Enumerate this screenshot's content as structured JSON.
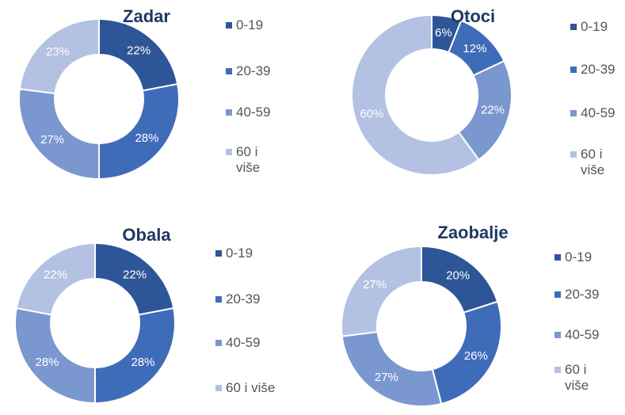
{
  "chart_data": [
    {
      "type": "donut",
      "title": "Zadar",
      "categories": [
        "0-19",
        "20-39",
        "40-59",
        "60 i više"
      ],
      "values": [
        22,
        28,
        27,
        23
      ],
      "value_labels": [
        "22%",
        "28%",
        "27%",
        "23%"
      ],
      "colors": [
        "#2e5597",
        "#3f6cb8",
        "#7b97cf",
        "#b3c2e2"
      ]
    },
    {
      "type": "donut",
      "title": "Otoci",
      "categories": [
        "0-19",
        "20-39",
        "40-59",
        "60 i više"
      ],
      "values": [
        6,
        12,
        22,
        60
      ],
      "value_labels": [
        "6%",
        "12%",
        "22%",
        "60%"
      ],
      "colors": [
        "#2e5597",
        "#3f6cb8",
        "#7b97cf",
        "#b3c2e2"
      ]
    },
    {
      "type": "donut",
      "title": "Obala",
      "categories": [
        "0-19",
        "20-39",
        "40-59",
        "60 i više"
      ],
      "values": [
        22,
        28,
        28,
        22
      ],
      "value_labels": [
        "22%",
        "28%",
        "28%",
        "22%"
      ],
      "colors": [
        "#2e5597",
        "#3f6cb8",
        "#7b97cf",
        "#b3c2e2"
      ]
    },
    {
      "type": "donut",
      "title": "Zaobalje",
      "categories": [
        "0-19",
        "20-39",
        "40-59",
        "60 i više"
      ],
      "values": [
        20,
        26,
        27,
        27
      ],
      "value_labels": [
        "20%",
        "26%",
        "27%",
        "27%"
      ],
      "colors": [
        "#2e5597",
        "#3f6cb8",
        "#7b97cf",
        "#b3c2e2"
      ]
    }
  ]
}
